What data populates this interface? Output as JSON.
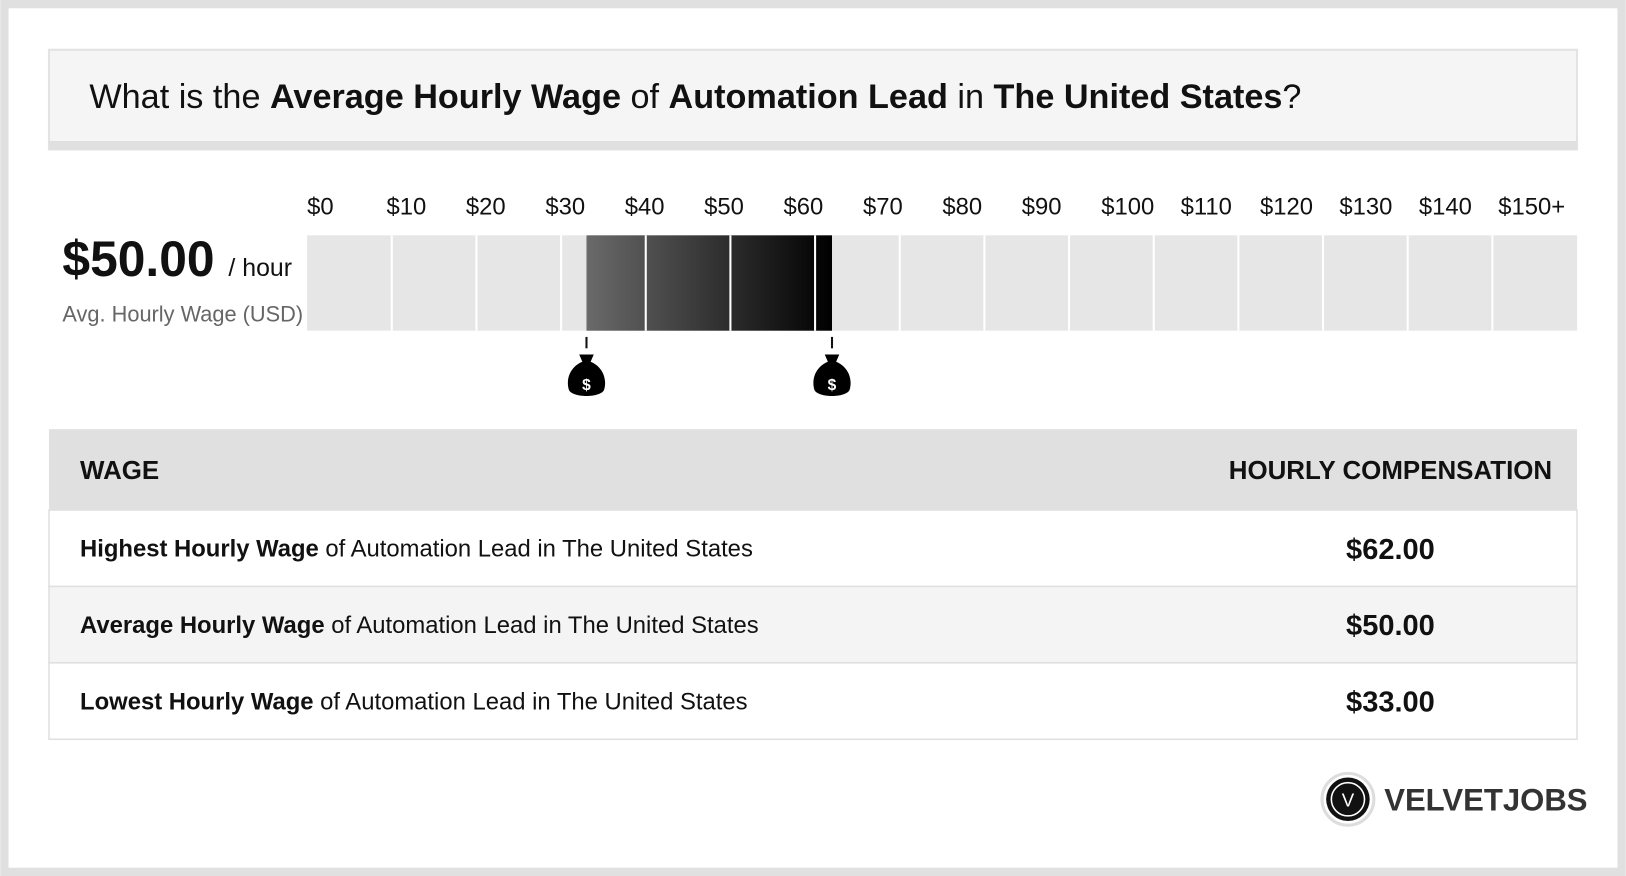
{
  "header": {
    "words": [
      "What is the",
      "Average Hourly Wage",
      "of",
      "Automation Lead",
      "in",
      "The United States",
      "?"
    ]
  },
  "summary": {
    "value": "$50.00",
    "unit": "/ hour",
    "caption": "Avg. Hourly Wage (USD)"
  },
  "scale": {
    "xlim": [
      0,
      150
    ],
    "low": 33,
    "high": 62,
    "ticks": [
      {
        "value": 0,
        "label": "$0"
      },
      {
        "value": 10,
        "label": "$10"
      },
      {
        "value": 20,
        "label": "$20"
      },
      {
        "value": 30,
        "label": "$30"
      },
      {
        "value": 40,
        "label": "$40"
      },
      {
        "value": 50,
        "label": "$50"
      },
      {
        "value": 60,
        "label": "$60"
      },
      {
        "value": 70,
        "label": "$70"
      },
      {
        "value": 80,
        "label": "$80"
      },
      {
        "value": 90,
        "label": "$90"
      },
      {
        "value": 100,
        "label": "$100"
      },
      {
        "value": 110,
        "label": "$110"
      },
      {
        "value": 120,
        "label": "$120"
      },
      {
        "value": 130,
        "label": "$130"
      },
      {
        "value": 140,
        "label": "$140"
      },
      {
        "value": 150,
        "label": "$150+"
      }
    ]
  },
  "table": {
    "header": [
      "WAGE",
      "HOURLY COMPENSATION"
    ],
    "rows": [
      [
        {
          "bold": "Highest Hourly Wage",
          "rest": "of Automation Lead in The United States"
        },
        "$62.00"
      ],
      [
        {
          "bold": "Average Hourly Wage",
          "rest": "of Automation Lead in The United States"
        },
        "$50.00"
      ],
      [
        {
          "bold": "Lowest Hourly Wage",
          "rest": "of Automation Lead in The United States"
        },
        "$33.00"
      ]
    ]
  },
  "brand": {
    "logo": "V",
    "name": "VELVETJOBS"
  }
}
